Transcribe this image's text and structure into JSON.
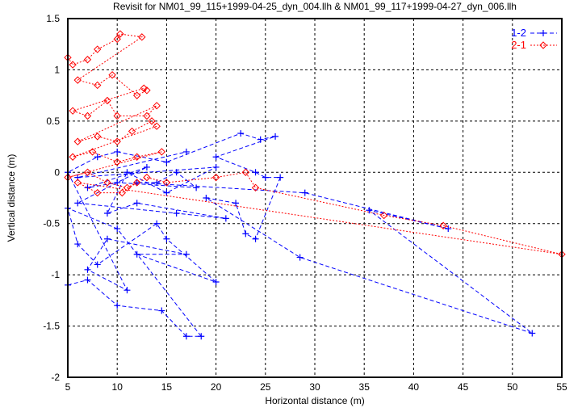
{
  "chart_data": {
    "type": "line",
    "title": "Revisit for NM01_99_115+1999-04-25_dyn_004.llh & NM01_99_117+1999-04-27_dyn_006.llh",
    "xlabel": "Horizontal distance (m)",
    "ylabel": "Vertical distance (m)",
    "xlim": [
      5,
      55
    ],
    "ylim": [
      -2,
      1.5
    ],
    "xticks": [
      "5",
      "10",
      "15",
      "20",
      "25",
      "30",
      "35",
      "40",
      "45",
      "50",
      "55"
    ],
    "xtick_values": [
      5,
      10,
      15,
      20,
      25,
      30,
      35,
      40,
      45,
      50,
      55
    ],
    "yticks": [
      "1.5",
      "1",
      "0.5",
      "0",
      "-0.5",
      "-1",
      "-1.5",
      "-2"
    ],
    "ytick_values": [
      1.5,
      1,
      0.5,
      0,
      -0.5,
      -1,
      -1.5,
      -2
    ],
    "grid": true,
    "legend_position": "top-right",
    "series": [
      {
        "name": "1-2",
        "color": "#0000ff",
        "marker": "plus",
        "points": [
          [
            5,
            -1.1
          ],
          [
            7,
            -1.05
          ],
          [
            10,
            -1.3
          ],
          [
            14.5,
            -1.35
          ],
          [
            17,
            -1.6
          ],
          [
            18.5,
            -1.6
          ],
          [
            10,
            -0.55
          ],
          [
            5,
            -0.35
          ],
          [
            6,
            -0.7
          ],
          [
            8,
            -0.9
          ],
          [
            14,
            -0.5
          ],
          [
            15,
            -0.65
          ],
          [
            20,
            -1.07
          ],
          [
            12,
            -0.8
          ],
          [
            17,
            -0.8
          ],
          [
            9,
            -0.65
          ],
          [
            7,
            -0.95
          ],
          [
            11,
            -1.15
          ],
          [
            5,
            0
          ],
          [
            8,
            0.15
          ],
          [
            10,
            0.2
          ],
          [
            15,
            0.1
          ],
          [
            22.5,
            0.38
          ],
          [
            24.5,
            0.32
          ],
          [
            26,
            0.35
          ],
          [
            20,
            0.15
          ],
          [
            24,
            0
          ],
          [
            25,
            -0.05
          ],
          [
            26.5,
            -0.05
          ],
          [
            24,
            -0.65
          ],
          [
            23,
            -0.6
          ],
          [
            22,
            -0.3
          ],
          [
            19,
            -0.25
          ],
          [
            28.5,
            -0.83
          ],
          [
            52,
            -1.57
          ],
          [
            35.5,
            -0.37
          ],
          [
            43.5,
            -0.55
          ],
          [
            29,
            -0.2
          ],
          [
            12,
            -0.1
          ],
          [
            14,
            -0.1
          ],
          [
            16,
            0
          ],
          [
            18,
            -0.15
          ],
          [
            10,
            -0.1
          ],
          [
            7,
            -0.15
          ],
          [
            13,
            0.05
          ],
          [
            6,
            -0.3
          ],
          [
            16,
            -0.4
          ],
          [
            21,
            -0.45
          ],
          [
            12,
            -0.3
          ],
          [
            9,
            -0.4
          ],
          [
            11,
            0
          ],
          [
            15,
            -0.2
          ],
          [
            20,
            0.05
          ],
          [
            6,
            -0.05
          ],
          [
            17,
            0.2
          ]
        ]
      },
      {
        "name": "2-1",
        "color": "#ff0000",
        "marker": "diamond",
        "points": [
          [
            5,
            1.12
          ],
          [
            5.5,
            1.05
          ],
          [
            7,
            1.1
          ],
          [
            8,
            1.2
          ],
          [
            10,
            1.3
          ],
          [
            10.3,
            1.35
          ],
          [
            12.5,
            1.32
          ],
          [
            6,
            0.9
          ],
          [
            8,
            0.85
          ],
          [
            9.5,
            0.95
          ],
          [
            12,
            0.75
          ],
          [
            13,
            0.8
          ],
          [
            12.7,
            0.82
          ],
          [
            5.5,
            0.6
          ],
          [
            7,
            0.55
          ],
          [
            9,
            0.7
          ],
          [
            10,
            0.55
          ],
          [
            13,
            0.55
          ],
          [
            14,
            0.65
          ],
          [
            6,
            0.3
          ],
          [
            8,
            0.35
          ],
          [
            10,
            0.3
          ],
          [
            11.5,
            0.4
          ],
          [
            13.5,
            0.5
          ],
          [
            14,
            0.45
          ],
          [
            5.5,
            0.15
          ],
          [
            7.5,
            0.2
          ],
          [
            10,
            0.1
          ],
          [
            12,
            0.15
          ],
          [
            14.5,
            0.2
          ],
          [
            5,
            -0.05
          ],
          [
            7,
            0
          ],
          [
            9,
            -0.1
          ],
          [
            11,
            -0.15
          ],
          [
            13,
            -0.05
          ],
          [
            15,
            -0.1
          ],
          [
            20,
            -0.05
          ],
          [
            23,
            0
          ],
          [
            24,
            -0.15
          ],
          [
            37,
            -0.42
          ],
          [
            43,
            -0.52
          ],
          [
            55,
            -0.8
          ],
          [
            6,
            -0.1
          ],
          [
            8,
            -0.2
          ],
          [
            10.5,
            -0.2
          ],
          [
            12,
            -0.1
          ]
        ]
      }
    ]
  }
}
